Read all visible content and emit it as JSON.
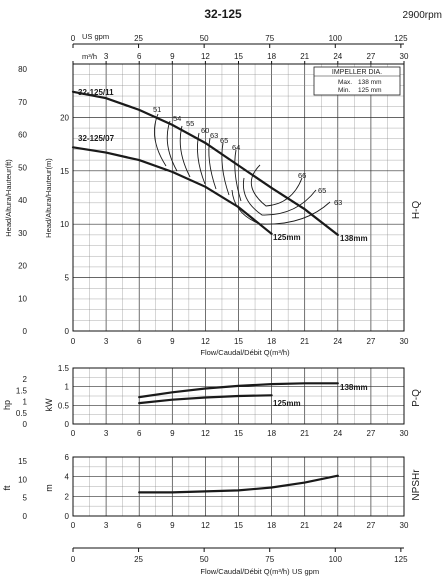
{
  "title": "32-125",
  "speed": "2900rpm",
  "top_axis": {
    "gpm_label": "US gpm",
    "gpm_ticks": [
      "0",
      "25",
      "50",
      "75",
      "100",
      "125"
    ],
    "m3h_label": "m³/h",
    "m3h_ticks": [
      "0",
      "3",
      "6",
      "9",
      "12",
      "15",
      "18",
      "21",
      "24",
      "27",
      "30"
    ]
  },
  "bottom_axis": {
    "gpm_label": "US gpm",
    "gpm_ticks": [
      "0",
      "25",
      "50",
      "75",
      "100",
      "125"
    ]
  },
  "impeller_legend": {
    "title": "IMPELLER DIA.",
    "max_label": "Max.",
    "max_value": "138 mm",
    "min_label": "Min.",
    "min_value": "125 mm"
  },
  "chart_data": [
    {
      "type": "line",
      "name": "H-Q",
      "side_label": "H-Q",
      "xlabel": "Flow/Caudal/Débit Q(m³/h)",
      "ylabel_m": "Head/Altura/Hauteur(m)",
      "ylabel_ft": "Head/Altura/Hauteur(ft)",
      "xlim": [
        0,
        30
      ],
      "ylim_m": [
        0,
        25
      ],
      "ylim_ft": [
        0,
        80
      ],
      "x_ticks": [
        "0",
        "3",
        "6",
        "9",
        "12",
        "15",
        "18",
        "21",
        "24",
        "27",
        "30"
      ],
      "y_ticks_m": [
        "0",
        "5",
        "10",
        "15",
        "20"
      ],
      "y_ticks_ft": [
        "0",
        "10",
        "20",
        "30",
        "40",
        "50",
        "60",
        "70",
        "80"
      ],
      "series": [
        {
          "name": "32-125/11",
          "end_label": "138mm",
          "x": [
            0,
            3,
            6,
            9,
            12,
            15,
            18,
            21,
            24
          ],
          "y": [
            22.4,
            21.8,
            20.7,
            19.3,
            17.6,
            15.5,
            13.4,
            11.4,
            9.0
          ]
        },
        {
          "name": "32-125/07",
          "end_label": "125mm",
          "x": [
            0,
            3,
            6,
            9,
            12,
            15,
            18
          ],
          "y": [
            17.2,
            16.7,
            16.0,
            14.9,
            13.5,
            11.6,
            9.1
          ]
        }
      ],
      "efficiency_labels": [
        "51",
        "54",
        "55",
        "60",
        "63",
        "65",
        "64",
        "66",
        "65",
        "63"
      ]
    },
    {
      "type": "line",
      "name": "P-Q",
      "side_label": "P-Q",
      "ylabel_kw": "kW",
      "ylabel_hp": "hp",
      "xlim": [
        0,
        30
      ],
      "ylim_kw": [
        0,
        1.5
      ],
      "ylim_hp": [
        0,
        2
      ],
      "x_ticks": [
        "0",
        "3",
        "6",
        "9",
        "12",
        "15",
        "18",
        "21",
        "24",
        "27",
        "30"
      ],
      "y_ticks_kw": [
        "0",
        "0.5",
        "1",
        "1.5"
      ],
      "y_ticks_hp": [
        "0",
        "0.5",
        "1",
        "1.5",
        "2"
      ],
      "series": [
        {
          "name": "138mm",
          "x": [
            6,
            9,
            12,
            15,
            18,
            21,
            24
          ],
          "y": [
            0.72,
            0.85,
            0.95,
            1.02,
            1.07,
            1.09,
            1.09
          ]
        },
        {
          "name": "125mm",
          "x": [
            6,
            9,
            12,
            15,
            18
          ],
          "y": [
            0.56,
            0.65,
            0.71,
            0.75,
            0.77
          ]
        }
      ]
    },
    {
      "type": "line",
      "name": "NPSHr",
      "side_label": "NPSHr",
      "ylabel_m": "m",
      "ylabel_ft": "ft",
      "xlim": [
        0,
        30
      ],
      "ylim_m": [
        0,
        6
      ],
      "ylim_ft": [
        0,
        15
      ],
      "x_ticks": [
        "0",
        "3",
        "6",
        "9",
        "12",
        "15",
        "18",
        "21",
        "24",
        "27",
        "30"
      ],
      "y_ticks_m": [
        "0",
        "2",
        "4",
        "6"
      ],
      "y_ticks_ft": [
        "0",
        "5",
        "10",
        "15"
      ],
      "xlabel": "Flow/Caudal/Débit Q(m³/h)",
      "series": [
        {
          "name": "NPSHr",
          "x": [
            6,
            9,
            12,
            15,
            18,
            21,
            24
          ],
          "y": [
            2.4,
            2.4,
            2.5,
            2.6,
            2.9,
            3.4,
            4.1
          ]
        }
      ]
    }
  ]
}
